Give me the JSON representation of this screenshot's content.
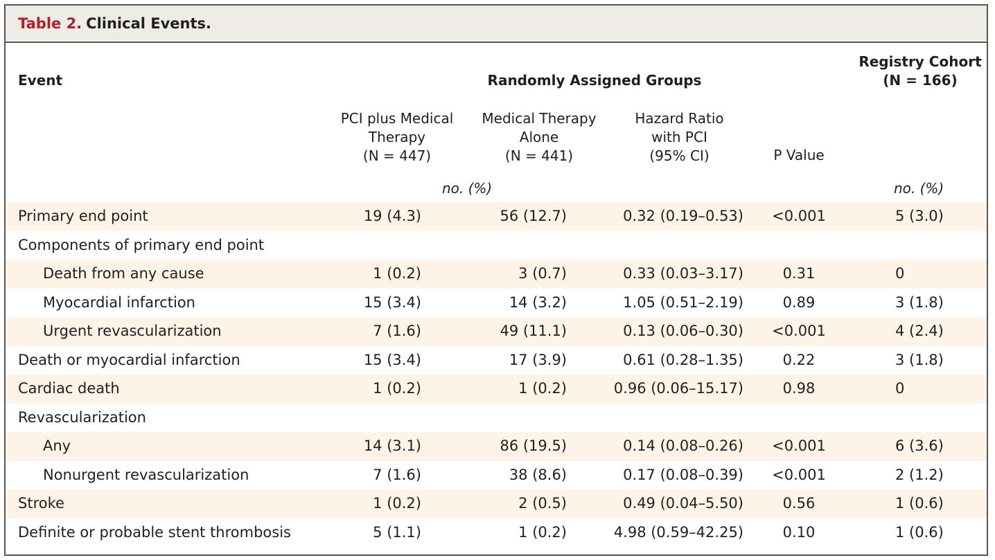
{
  "table": {
    "title_number": "Table 2.",
    "title_text": "Clinical Events.",
    "headers": {
      "event": "Event",
      "randomly_assigned": "Randomly Assigned Groups",
      "registry_line1": "Registry Cohort",
      "registry_line2": "(N = 166)",
      "pci": [
        "PCI plus Medical",
        "Therapy",
        "(N = 447)"
      ],
      "med": [
        "Medical Therapy",
        "Alone",
        "(N = 441)"
      ],
      "hr": [
        "Hazard Ratio",
        "with PCI",
        "(95% CI)"
      ],
      "p_value": "P Value",
      "unit_left": "no. (%)",
      "unit_right": "no. (%)"
    },
    "rows": [
      {
        "label": "Primary end point",
        "indent": false,
        "pci": "19 (4.3)",
        "med": "56 (12.7)",
        "hr": "0.32 (0.19–0.53)",
        "p": "<0.001",
        "reg": "5 (3.0)"
      },
      {
        "label": "Components of primary end point",
        "indent": false,
        "pci": "",
        "med": "",
        "hr": "",
        "p": "",
        "reg": ""
      },
      {
        "label": "Death from any cause",
        "indent": true,
        "pci": "1 (0.2)",
        "med": "3 (0.7)",
        "hr": "0.33 (0.03–3.17)",
        "p": "0.31",
        "reg": "0"
      },
      {
        "label": "Myocardial infarction",
        "indent": true,
        "pci": "15 (3.4)",
        "med": "14 (3.2)",
        "hr": "1.05 (0.51–2.19)",
        "p": "0.89",
        "reg": "3 (1.8)"
      },
      {
        "label": "Urgent revascularization",
        "indent": true,
        "pci": "7 (1.6)",
        "med": "49 (11.1)",
        "hr": "0.13 (0.06–0.30)",
        "p": "<0.001",
        "reg": "4 (2.4)"
      },
      {
        "label": "Death or myocardial infarction",
        "indent": false,
        "pci": "15 (3.4)",
        "med": "17 (3.9)",
        "hr": "0.61 (0.28–1.35)",
        "p": "0.22",
        "reg": "3 (1.8)"
      },
      {
        "label": "Cardiac death",
        "indent": false,
        "pci": "1 (0.2)",
        "med": "1 (0.2)",
        "hr": "0.96 (0.06–15.17)",
        "p": "0.98",
        "reg": "0"
      },
      {
        "label": "Revascularization",
        "indent": false,
        "pci": "",
        "med": "",
        "hr": "",
        "p": "",
        "reg": ""
      },
      {
        "label": "Any",
        "indent": true,
        "pci": "14 (3.1)",
        "med": "86 (19.5)",
        "hr": "0.14 (0.08–0.26)",
        "p": "<0.001",
        "reg": "6 (3.6)"
      },
      {
        "label": "Nonurgent revascularization",
        "indent": true,
        "pci": "7 (1.6)",
        "med": "38 (8.6)",
        "hr": "0.17 (0.08–0.39)",
        "p": "<0.001",
        "reg": "2 (1.2)"
      },
      {
        "label": "Stroke",
        "indent": false,
        "pci": "1 (0.2)",
        "med": "2 (0.5)",
        "hr": "0.49 (0.04–5.50)",
        "p": "0.56",
        "reg": "1 (0.6)"
      },
      {
        "label": "Definite or probable stent thrombosis",
        "indent": false,
        "pci": "5 (1.1)",
        "med": "1 (0.2)",
        "hr": "4.98 (0.59–42.25)",
        "p": "0.10",
        "reg": "1 (0.6)"
      }
    ],
    "colors": {
      "title_accent": "#b1202a",
      "title_bg": "#efebe6",
      "row_shade": "#fdf3e6",
      "border": "#555555"
    }
  }
}
